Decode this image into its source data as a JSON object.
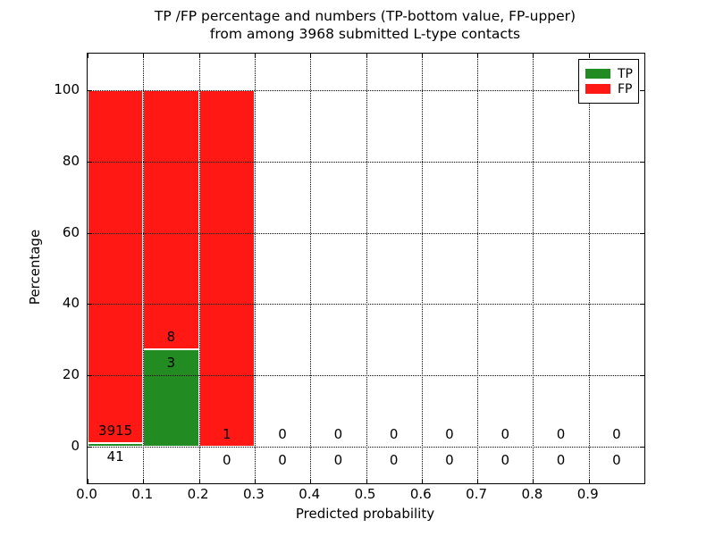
{
  "chart_data": {
    "type": "bar",
    "stacked": true,
    "title_line1": "TP /FP percentage and numbers (TP-bottom value, FP-upper)",
    "title_line2": "from among 3968 submitted L-type contacts",
    "total_submitted": 3968,
    "xlabel": "Predicted probability",
    "ylabel": "Percentage",
    "xlim": [
      0.0,
      1.0
    ],
    "ylim": [
      -10.3,
      110.3
    ],
    "x_tick_labels": [
      "0.0",
      "0.1",
      "0.2",
      "0.3",
      "0.4",
      "0.5",
      "0.6",
      "0.7",
      "0.8",
      "0.9"
    ],
    "x_tick_values": [
      0.0,
      0.1,
      0.2,
      0.3,
      0.4,
      0.5,
      0.6,
      0.7,
      0.8,
      0.9
    ],
    "y_tick_labels": [
      "0",
      "20",
      "40",
      "60",
      "80",
      "100"
    ],
    "y_tick_values": [
      0,
      20,
      40,
      60,
      80,
      100
    ],
    "grid": "dotted",
    "bin_width": 0.1,
    "bin_starts": [
      0.0,
      0.1,
      0.2,
      0.3,
      0.4,
      0.5,
      0.6,
      0.7,
      0.8,
      0.9
    ],
    "series": [
      {
        "name": "TP",
        "color": "#228b22",
        "counts": [
          41,
          3,
          0,
          0,
          0,
          0,
          0,
          0,
          0,
          0
        ],
        "pct": [
          1.04,
          27.27,
          0,
          0,
          0,
          0,
          0,
          0,
          0,
          0
        ]
      },
      {
        "name": "FP",
        "color": "#ff1814",
        "counts": [
          3915,
          8,
          1,
          0,
          0,
          0,
          0,
          0,
          0,
          0
        ],
        "pct": [
          98.96,
          72.73,
          100,
          0,
          0,
          0,
          0,
          0,
          0,
          0
        ]
      }
    ],
    "bar_labels": {
      "upper": [
        "3915",
        "8",
        "1",
        "0",
        "0",
        "0",
        "0",
        "0",
        "0",
        "0"
      ],
      "lower": [
        "41",
        "3",
        "0",
        "0",
        "0",
        "0",
        "0",
        "0",
        "0",
        "0"
      ]
    },
    "legend": {
      "position": "upper right",
      "items": [
        {
          "label": "TP",
          "color": "#228b22"
        },
        {
          "label": "FP",
          "color": "#ff1814"
        }
      ]
    }
  }
}
